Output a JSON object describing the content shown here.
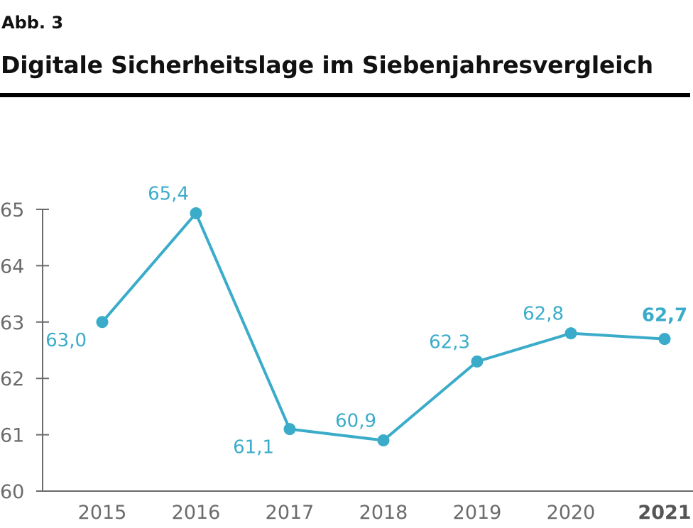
{
  "figure": {
    "label": "Abb. 3",
    "title": "Digitale Sicherheitslage im Siebenjahresvergleich"
  },
  "colors": {
    "series": "#3aacca",
    "axis": "#6b6b6b",
    "text": "#111111"
  },
  "chart_data": {
    "type": "line",
    "title": "Digitale Sicherheitslage im Siebenjahresvergleich",
    "xlabel": "",
    "ylabel": "",
    "categories": [
      "2015",
      "2016",
      "2017",
      "2018",
      "2019",
      "2020",
      "2021"
    ],
    "series": [
      {
        "name": "Digitale Sicherheitslage",
        "values": [
          63.0,
          65.4,
          61.1,
          60.9,
          62.3,
          62.8,
          62.7
        ],
        "labels": [
          "63,0",
          "65,4",
          "61,1",
          "60,9",
          "62,3",
          "62,8",
          "62,7"
        ],
        "label_positions": [
          "below-left",
          "above-left",
          "below-left",
          "above-left",
          "above-left",
          "above-left",
          "above"
        ]
      }
    ],
    "ylim": [
      60,
      65
    ],
    "yticks": [
      60,
      61,
      62,
      63,
      64,
      65
    ],
    "highlight_category": "2021",
    "grid": false,
    "legend": "none",
    "markers": true
  }
}
